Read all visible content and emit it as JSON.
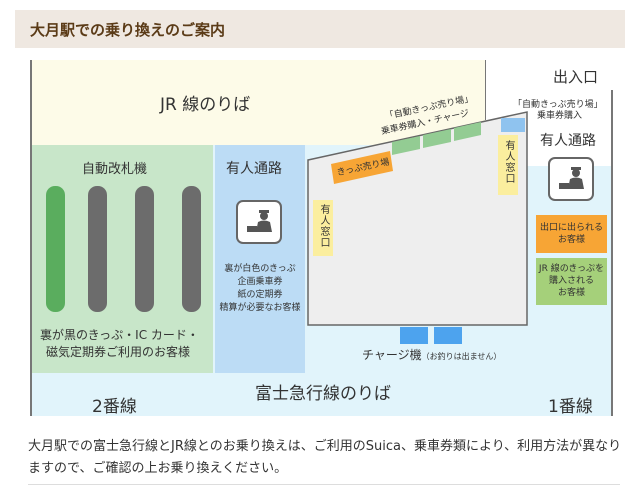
{
  "header": {
    "title": "大月駅での乗り換えのご案内"
  },
  "map": {
    "jr_platform": "JR 線のりば",
    "exit": "出入口",
    "auto_ticket_area_right": [
      "「自動きっぷ売り場」",
      "乗車券購入"
    ],
    "auto_ticket_area_top": [
      "「自動きっぷ売り場」",
      "乗車券購入・チャージ"
    ],
    "ticket_office": "きっぷ売り場",
    "staffed_window": "有人窓口",
    "staffed_window_2": "有人窓口",
    "staffed_passage_right": "有人通路",
    "staffed_passage_left": "有人通路",
    "auto_gates": "自動改札機",
    "auto_gates_note": [
      "裏が黒のきっぷ・IC カード・",
      "磁気定期券ご利用のお客様"
    ],
    "staffed_note": [
      "裏が白色のきっぷ",
      "企画乗車券",
      "紙の定期券",
      "精算が必要なお客様"
    ],
    "exit_note": [
      "出口に出られる",
      "お客様"
    ],
    "jr_ticket_note": [
      "JR 線のきっぷを",
      "購入される",
      "お客様"
    ],
    "charge_machine": "チャージ機",
    "charge_note": "（お釣りは出ません）",
    "fuji_platform": "富士急行線のりば",
    "track2": "2番線",
    "track1": "1番線",
    "colors": {
      "jr_zone": "#fdfbe8",
      "gates_zone": "#c8e6c9",
      "staffed_zone": "#bcdcf5",
      "fuji_zone": "#e1f4fb",
      "concourse": "#eeeeee",
      "orange": "#f7a535",
      "green_box": "#a5d07a",
      "charge": "#4da3ee"
    }
  },
  "body": {
    "text": "大月駅での富士急行線とJR線とのお乗り換えは、ご利用のSuica、乗車券類により、利用方法が異なりますので、ご確認の上お乗り換えください。"
  }
}
